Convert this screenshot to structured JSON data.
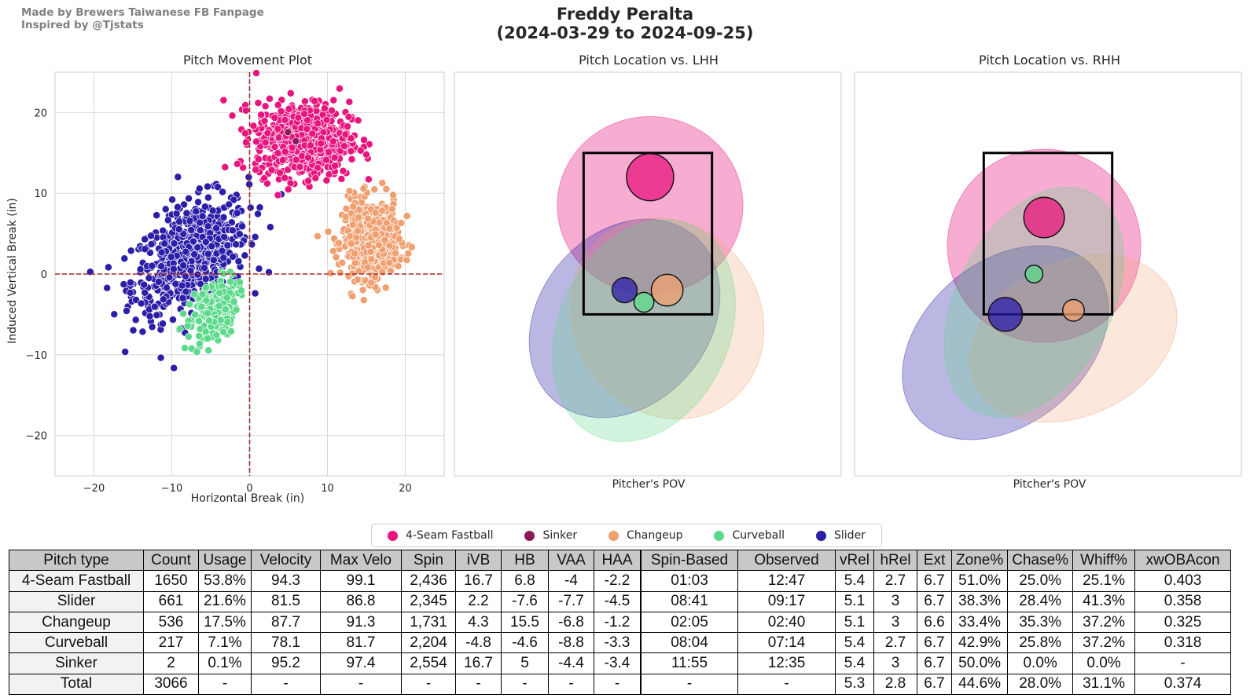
{
  "credits": [
    "Made by Brewers Taiwanese FB Fanpage",
    "Inspired by @Tjstats"
  ],
  "title": {
    "line1": "Freddy Peralta",
    "line2": "(2024-03-29 to 2024-09-25)"
  },
  "pitch_colors": {
    "4-Seam Fastball": "#e8157e",
    "Sinker": "#8c1a5a",
    "Changeup": "#f0a070",
    "Curveball": "#5cd98a",
    "Slider": "#2b1ea8"
  },
  "legend": [
    {
      "label": "4-Seam Fastball",
      "color": "#e8157e"
    },
    {
      "label": "Sinker",
      "color": "#8c1a5a"
    },
    {
      "label": "Changeup",
      "color": "#f0a070"
    },
    {
      "label": "Curveball",
      "color": "#5cd98a"
    },
    {
      "label": "Slider",
      "color": "#2b1ea8"
    }
  ],
  "chart_data": [
    {
      "type": "scatter",
      "title": "Pitch Movement Plot",
      "xlabel": "Horizontal Break (in)",
      "ylabel": "Induced Vertical Break (in)",
      "xlim": [
        -25,
        25
      ],
      "ylim": [
        -25,
        25
      ],
      "xticks": [
        -20,
        -10,
        0,
        10,
        20
      ],
      "yticks": [
        -20,
        -10,
        0,
        10,
        20
      ],
      "xtick_labels": [
        "−20",
        "−10",
        "0",
        "10",
        "20"
      ],
      "ytick_labels": [
        "−20",
        "−10",
        "0",
        "10",
        "20"
      ],
      "grid": true,
      "reference_lines": {
        "x": 0,
        "y": 0,
        "style": "dashed",
        "color": "#a52a2a"
      },
      "series": [
        {
          "name": "4-Seam Fastball",
          "count": 1650,
          "center": [
            6.8,
            16.7
          ],
          "spread": [
            3.0,
            2.3
          ]
        },
        {
          "name": "Slider",
          "count": 661,
          "center": [
            -7.6,
            2.2
          ],
          "spread": [
            3.7,
            3.6
          ],
          "corr": 0.45
        },
        {
          "name": "Changeup",
          "count": 536,
          "center": [
            15.5,
            4.3
          ],
          "spread": [
            1.8,
            2.4
          ]
        },
        {
          "name": "Curveball",
          "count": 217,
          "center": [
            -4.6,
            -4.8
          ],
          "spread": [
            1.5,
            2.1
          ],
          "corr": 0.4
        },
        {
          "name": "Sinker",
          "count": 2,
          "center": [
            5,
            16.7
          ],
          "spread": [
            0.5,
            0.5
          ]
        }
      ]
    },
    {
      "type": "scatter",
      "title": "Pitch Location vs. LHH",
      "xlabel": "Pitcher's POV",
      "xlim": [
        -2.5,
        2.5
      ],
      "ylim": [
        -0.5,
        4.5
      ],
      "strike_zone": {
        "x": [
          -0.83,
          0.83
        ],
        "z": [
          1.5,
          3.5
        ]
      },
      "means": [
        {
          "name": "4-Seam Fastball",
          "x": 0.03,
          "z": 3.2,
          "size_rel": 1.0,
          "ellipse": {
            "w": 2.4,
            "h": 2.3,
            "angle": 0
          }
        },
        {
          "name": "Slider",
          "x": -0.3,
          "z": 1.8,
          "size_rel": 0.5,
          "ellipse": {
            "w": 2.2,
            "h": 2.8,
            "angle": 40
          }
        },
        {
          "name": "Changeup",
          "x": 0.25,
          "z": 1.8,
          "size_rel": 0.65,
          "ellipse": {
            "w": 2.7,
            "h": 2.4,
            "angle": 55
          }
        },
        {
          "name": "Curveball",
          "x": -0.05,
          "z": 1.65,
          "size_rel": 0.38,
          "ellipse": {
            "w": 2.2,
            "h": 3.0,
            "angle": 25
          }
        }
      ]
    },
    {
      "type": "scatter",
      "title": "Pitch Location vs. RHH",
      "xlabel": "Pitcher's POV",
      "xlim": [
        -2.5,
        2.5
      ],
      "ylim": [
        -0.5,
        4.5
      ],
      "strike_zone": {
        "x": [
          -0.83,
          0.83
        ],
        "z": [
          1.5,
          3.5
        ]
      },
      "means": [
        {
          "name": "4-Seam Fastball",
          "x": -0.05,
          "z": 2.7,
          "size_rel": 0.85,
          "ellipse": {
            "w": 2.5,
            "h": 2.5,
            "angle": 35
          }
        },
        {
          "name": "Slider",
          "x": -0.55,
          "z": 1.5,
          "size_rel": 0.7,
          "ellipse": {
            "w": 2.1,
            "h": 3.0,
            "angle": 50
          }
        },
        {
          "name": "Changeup",
          "x": 0.33,
          "z": 1.55,
          "size_rel": 0.42,
          "ellipse": {
            "w": 2.8,
            "h": 2.0,
            "angle": -25
          }
        },
        {
          "name": "Curveball",
          "x": -0.18,
          "z": 2.0,
          "size_rel": 0.33,
          "ellipse": {
            "w": 2.0,
            "h": 3.2,
            "angle": 28
          }
        }
      ]
    }
  ],
  "table": {
    "headers": [
      "Pitch type",
      "Count",
      "Usage",
      "Velocity",
      "Max Velo",
      "Spin",
      "iVB",
      "HB",
      "VAA",
      "HAA",
      "Spin-Based",
      "Observed",
      "vRel",
      "hRel",
      "Ext",
      "Zone%",
      "Chase%",
      "Whiff%",
      "xwOBAcon"
    ],
    "rows": [
      [
        "4-Seam Fastball",
        "1650",
        "53.8%",
        "94.3",
        "99.1",
        "2,436",
        "16.7",
        "6.8",
        "-4",
        "-2.2",
        "01:03",
        "12:47",
        "5.4",
        "2.7",
        "6.7",
        "51.0%",
        "25.0%",
        "25.1%",
        "0.403"
      ],
      [
        "Slider",
        "661",
        "21.6%",
        "81.5",
        "86.8",
        "2,345",
        "2.2",
        "-7.6",
        "-7.7",
        "-4.5",
        "08:41",
        "09:17",
        "5.1",
        "3",
        "6.7",
        "38.3%",
        "28.4%",
        "41.3%",
        "0.358"
      ],
      [
        "Changeup",
        "536",
        "17.5%",
        "87.7",
        "91.3",
        "1,731",
        "4.3",
        "15.5",
        "-6.8",
        "-1.2",
        "02:05",
        "02:40",
        "5.1",
        "3",
        "6.6",
        "33.4%",
        "35.3%",
        "37.2%",
        "0.325"
      ],
      [
        "Curveball",
        "217",
        "7.1%",
        "78.1",
        "81.7",
        "2,204",
        "-4.8",
        "-4.6",
        "-8.8",
        "-3.3",
        "08:04",
        "07:14",
        "5.4",
        "2.7",
        "6.7",
        "42.9%",
        "25.8%",
        "37.2%",
        "0.318"
      ],
      [
        "Sinker",
        "2",
        "0.1%",
        "95.2",
        "97.4",
        "2,554",
        "16.7",
        "5",
        "-4.4",
        "-3.4",
        "11:55",
        "12:35",
        "5.4",
        "3",
        "6.7",
        "50.0%",
        "0.0%",
        "0.0%",
        "-"
      ],
      [
        "Total",
        "3066",
        "-",
        "-",
        "-",
        "-",
        "-",
        "-",
        "-",
        "-",
        "-",
        "-",
        "5.3",
        "2.8",
        "6.7",
        "44.6%",
        "28.0%",
        "31.1%",
        "0.374"
      ]
    ]
  }
}
